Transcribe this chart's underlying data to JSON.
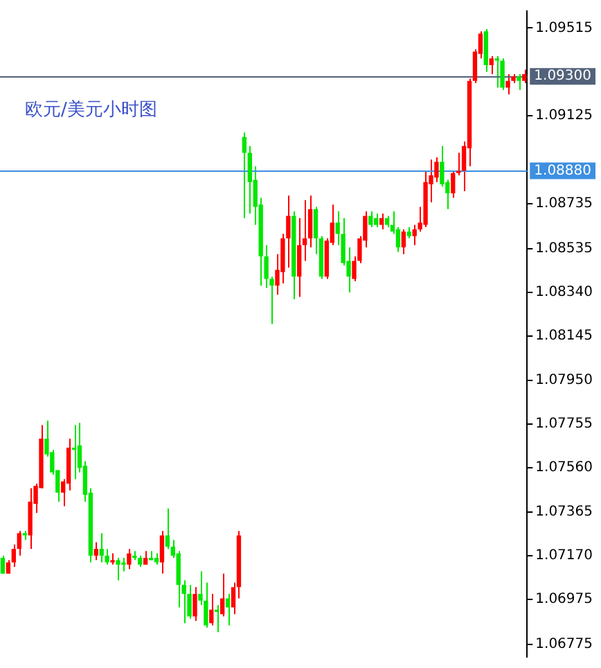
{
  "chart_data": {
    "type": "candlestick",
    "title": "欧元/美元小时图",
    "categories": [
      null,
      null,
      null,
      null,
      null,
      null,
      null,
      null,
      null,
      null,
      null,
      null,
      null,
      null,
      null,
      null,
      null,
      null,
      null,
      null,
      null,
      null,
      null,
      null,
      null,
      null,
      null,
      null,
      null,
      null,
      null,
      null,
      null,
      null,
      null,
      null,
      null,
      null,
      null,
      null,
      null,
      null,
      null,
      null,
      null,
      null,
      null,
      null,
      null,
      null,
      null,
      null,
      null,
      null,
      null,
      null,
      null,
      null,
      null,
      null,
      null,
      null,
      null,
      null,
      null,
      null,
      null,
      null,
      null,
      null,
      null,
      null,
      null,
      null,
      null,
      null,
      null,
      null,
      null,
      null,
      null,
      null,
      null,
      null,
      null,
      null,
      null,
      null,
      null,
      null,
      null,
      null,
      null,
      null,
      null,
      null
    ],
    "ohlc": [
      [
        1.0716,
        1.0717,
        1.0709,
        1.0709
      ],
      [
        1.0709,
        1.0715,
        1.0709,
        1.0714
      ],
      [
        1.0714,
        1.0722,
        1.0712,
        1.072
      ],
      [
        1.072,
        1.0728,
        1.0717,
        1.0727
      ],
      [
        1.0727,
        1.0728,
        1.0724,
        1.0726
      ],
      [
        1.0726,
        1.0747,
        1.072,
        1.0741
      ],
      [
        1.074,
        1.0749,
        1.0736,
        1.0748
      ],
      [
        1.0747,
        1.0775,
        1.0747,
        1.0769
      ],
      [
        1.0769,
        1.0777,
        1.0761,
        1.0762
      ],
      [
        1.0763,
        1.0764,
        1.0753,
        1.0754
      ],
      [
        1.0755,
        1.0755,
        1.0741,
        1.0745
      ],
      [
        1.0745,
        1.0751,
        1.0739,
        1.075
      ],
      [
        1.0749,
        1.0769,
        1.0746,
        1.0765
      ],
      [
        1.0765,
        1.0775,
        1.0751,
        1.0764
      ],
      [
        1.0766,
        1.0776,
        1.0754,
        1.0756
      ],
      [
        1.0757,
        1.0759,
        1.0741,
        1.0744
      ],
      [
        1.0745,
        1.0747,
        1.0714,
        1.0717
      ],
      [
        1.0717,
        1.0723,
        1.0715,
        1.072
      ],
      [
        1.072,
        1.0727,
        1.0714,
        1.0717
      ],
      [
        1.0717,
        1.072,
        1.0713,
        1.0714
      ],
      [
        1.0714,
        1.0718,
        1.0713,
        1.0715
      ],
      [
        1.0715,
        1.0716,
        1.0706,
        1.0713
      ],
      [
        1.0714,
        1.0716,
        1.071,
        1.0713
      ],
      [
        1.0713,
        1.072,
        1.0711,
        1.0718
      ],
      [
        1.0717,
        1.0719,
        1.0715,
        1.0716
      ],
      [
        1.0716,
        1.0717,
        1.0712,
        1.0713
      ],
      [
        1.0713,
        1.0719,
        1.0713,
        1.0716
      ],
      [
        1.0716,
        1.0719,
        1.0715,
        1.0715
      ],
      [
        1.0716,
        1.0718,
        1.0713,
        1.0714
      ],
      [
        1.0714,
        1.0728,
        1.0709,
        1.0726
      ],
      [
        1.0726,
        1.0738,
        1.072,
        1.0721
      ],
      [
        1.0721,
        1.0724,
        1.0716,
        1.0717
      ],
      [
        1.0718,
        1.0719,
        1.0694,
        1.0704
      ],
      [
        1.0704,
        1.0706,
        1.0687,
        1.07
      ],
      [
        1.07,
        1.0704,
        1.0689,
        1.069
      ],
      [
        1.069,
        1.0703,
        1.0688,
        1.07
      ],
      [
        1.07,
        1.071,
        1.0695,
        1.0697
      ],
      [
        1.0697,
        1.0705,
        1.0685,
        1.0686
      ],
      [
        1.0687,
        1.07,
        1.0686,
        1.0693
      ],
      [
        1.0693,
        1.0695,
        1.0683,
        1.0692
      ],
      [
        1.0691,
        1.0709,
        1.069,
        1.0698
      ],
      [
        1.0698,
        1.07,
        1.0686,
        1.0694
      ],
      [
        1.0694,
        1.0705,
        1.0691,
        1.0703
      ],
      [
        1.0703,
        1.0728,
        1.0698,
        1.0726
      ],
      [
        1.0903,
        1.0905,
        1.0867,
        1.0896
      ],
      [
        1.0896,
        1.0899,
        1.0869,
        1.0883
      ],
      [
        1.0884,
        1.089,
        1.0864,
        1.0872
      ],
      [
        1.0873,
        1.0876,
        1.0837,
        1.085
      ],
      [
        1.085,
        1.0855,
        1.0836,
        1.084
      ],
      [
        1.084,
        1.0841,
        1.082,
        1.0837
      ],
      [
        1.0837,
        1.0851,
        1.0833,
        1.0844
      ],
      [
        1.0843,
        1.086,
        1.0838,
        1.0858
      ],
      [
        1.0858,
        1.0877,
        1.0845,
        1.0868
      ],
      [
        1.0868,
        1.087,
        1.0831,
        1.0841
      ],
      [
        1.0841,
        1.0867,
        1.0832,
        1.0855
      ],
      [
        1.0855,
        1.0875,
        1.0848,
        1.0858
      ],
      [
        1.0858,
        1.0877,
        1.0854,
        1.0871
      ],
      [
        1.0871,
        1.0872,
        1.0851,
        1.0858
      ],
      [
        1.0858,
        1.0859,
        1.084,
        1.0841
      ],
      [
        1.0841,
        1.0858,
        1.084,
        1.0857
      ],
      [
        1.0856,
        1.0873,
        1.0855,
        1.0865
      ],
      [
        1.0865,
        1.087,
        1.0855,
        1.086
      ],
      [
        1.086,
        1.0867,
        1.0846,
        1.0847
      ],
      [
        1.0848,
        1.0854,
        1.0834,
        1.0841
      ],
      [
        1.084,
        1.085,
        1.0839,
        1.0848
      ],
      [
        1.0848,
        1.0859,
        1.0847,
        1.0858
      ],
      [
        1.0857,
        1.087,
        1.0854,
        1.0868
      ],
      [
        1.0868,
        1.087,
        1.0863,
        1.0864
      ],
      [
        1.0867,
        1.0869,
        1.0863,
        1.0864
      ],
      [
        1.0864,
        1.0869,
        1.0862,
        1.0867
      ],
      [
        1.0867,
        1.0868,
        1.0863,
        1.0864
      ],
      [
        1.0864,
        1.087,
        1.086,
        1.0861
      ],
      [
        1.0862,
        1.0863,
        1.0852,
        1.0854
      ],
      [
        1.0854,
        1.0862,
        1.0851,
        1.0861
      ],
      [
        1.0861,
        1.0863,
        1.0858,
        1.0859
      ],
      [
        1.0859,
        1.0864,
        1.0855,
        1.0862
      ],
      [
        1.0862,
        1.0872,
        1.0861,
        1.0865
      ],
      [
        1.0864,
        1.0888,
        1.0863,
        1.0883
      ],
      [
        1.0882,
        1.0893,
        1.0874,
        1.0886
      ],
      [
        1.0885,
        1.0894,
        1.0883,
        1.0892
      ],
      [
        1.0892,
        1.0899,
        1.0881,
        1.0882
      ],
      [
        1.0883,
        1.0884,
        1.0871,
        1.0878
      ],
      [
        1.0878,
        1.0888,
        1.0876,
        1.0887
      ],
      [
        1.0887,
        1.0896,
        1.0886,
        1.0888
      ],
      [
        1.0888,
        1.0901,
        1.0879,
        1.0899
      ],
      [
        1.0898,
        1.0929,
        1.089,
        1.0928
      ],
      [
        1.0928,
        1.0942,
        1.0927,
        1.0941
      ],
      [
        1.094,
        1.095,
        1.0938,
        1.0949
      ],
      [
        1.095,
        1.0951,
        1.0932,
        1.0935
      ],
      [
        1.0935,
        1.0939,
        1.0931,
        1.0938
      ],
      [
        1.0938,
        1.0939,
        1.0925,
        1.0937
      ],
      [
        1.0937,
        1.0938,
        1.0924,
        1.0925
      ],
      [
        1.0925,
        1.0931,
        1.0922,
        1.0928
      ],
      [
        1.0928,
        1.0931,
        1.0927,
        1.093
      ],
      [
        1.093,
        1.0931,
        1.0924,
        1.0928
      ],
      [
        1.0928,
        1.0933,
        1.0927,
        1.0931
      ]
    ],
    "colors": [
      "#00e600",
      "#ff0000",
      "#ff0000",
      "#ff0000",
      "#00e600",
      "#ff0000",
      "#ff0000",
      "#ff0000",
      "#00e600",
      "#00e600",
      "#00e600",
      "#ff0000",
      "#ff0000",
      "#00e600",
      "#00e600",
      "#00e600",
      "#00e600",
      "#ff0000",
      "#00e600",
      "#00e600",
      "#ff0000",
      "#00e600",
      "#00e600",
      "#ff0000",
      "#00e600",
      "#00e600",
      "#ff0000",
      "#00e600",
      "#00e600",
      "#ff0000",
      "#00e600",
      "#00e600",
      "#00e600",
      "#00e600",
      "#00e600",
      "#ff0000",
      "#00e600",
      "#00e600",
      "#ff0000",
      "#00e600",
      "#ff0000",
      "#00e600",
      "#ff0000",
      "#ff0000",
      "#00e600",
      "#00e600",
      "#00e600",
      "#00e600",
      "#00e600",
      "#00e600",
      "#ff0000",
      "#ff0000",
      "#ff0000",
      "#00e600",
      "#ff0000",
      "#ff0000",
      "#ff0000",
      "#00e600",
      "#00e600",
      "#ff0000",
      "#ff0000",
      "#00e600",
      "#00e600",
      "#00e600",
      "#ff0000",
      "#ff0000",
      "#ff0000",
      "#00e600",
      "#00e600",
      "#ff0000",
      "#00e600",
      "#00e600",
      "#00e600",
      "#ff0000",
      "#00e600",
      "#ff0000",
      "#ff0000",
      "#ff0000",
      "#ff0000",
      "#ff0000",
      "#00e600",
      "#00e600",
      "#ff0000",
      "#ff0000",
      "#ff0000",
      "#ff0000",
      "#ff0000",
      "#ff0000",
      "#00e600",
      "#ff0000",
      "#00e600",
      "#00e600",
      "#ff0000",
      "#ff0000",
      "#00e600",
      "#ff0000"
    ],
    "ylim": [
      1.0672,
      1.0959
    ],
    "yticks": [
      1.09515,
      1.09125,
      1.08735,
      1.08535,
      {
        "value": 1.0834,
        "label": "1.08340"
      },
      1.08145,
      {
        "value": 1.0795,
        "label": "1.07950"
      },
      1.07755,
      {
        "value": 1.0756,
        "label": "1.07560"
      },
      1.07365,
      {
        "value": 1.0717,
        "label": "1.07170"
      },
      1.06975,
      1.06775
    ],
    "ref_lines": [
      {
        "axis": "y",
        "value": 1.093,
        "label": "1.09300",
        "color": "#52627a"
      },
      {
        "axis": "y",
        "value": 1.0888,
        "label": "1.08880",
        "color": "#3d8fe0"
      }
    ],
    "grid": false,
    "legend": false
  }
}
